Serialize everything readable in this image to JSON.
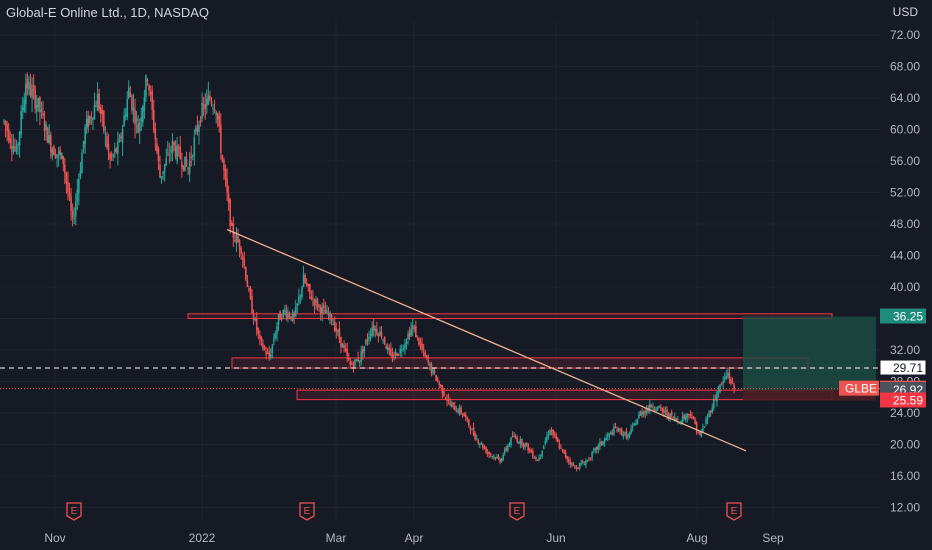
{
  "header": {
    "title": "Global-E Online Ltd., 1D, NASDAQ",
    "currency": "USD"
  },
  "colors": {
    "background": "#161a25",
    "up": "#26a69a",
    "down": "#ef5350",
    "trendline": "#f0b28e",
    "zone_border": "#f23645",
    "target_zone": "#1b4d44",
    "stop_zone": "#4a1f26"
  },
  "chart_data": {
    "type": "candlestick",
    "title": "Global-E Online Ltd., 1D, NASDAQ",
    "ylabel": "USD",
    "ylim": [
      8,
      76
    ],
    "y_ticks": [
      "72.00",
      "68.00",
      "64.00",
      "60.00",
      "56.00",
      "52.00",
      "48.00",
      "44.00",
      "40.00",
      "36.00",
      "32.00",
      "28.00",
      "24.00",
      "20.00",
      "16.00",
      "12.00"
    ],
    "x_ticks": [
      "Nov",
      "2022",
      "Mar",
      "Apr",
      "Jun",
      "Aug",
      "Sep"
    ],
    "price_path": [
      [
        0,
        61
      ],
      [
        8,
        57
      ],
      [
        14,
        66
      ],
      [
        22,
        63
      ],
      [
        30,
        58
      ],
      [
        38,
        56
      ],
      [
        44,
        48
      ],
      [
        52,
        60
      ],
      [
        60,
        64
      ],
      [
        68,
        56
      ],
      [
        74,
        58
      ],
      [
        80,
        65
      ],
      [
        86,
        60
      ],
      [
        92,
        67
      ],
      [
        100,
        54
      ],
      [
        108,
        58
      ],
      [
        118,
        55
      ],
      [
        126,
        62
      ],
      [
        132,
        64
      ],
      [
        136,
        63
      ],
      [
        140,
        56
      ],
      [
        146,
        47
      ],
      [
        152,
        45
      ],
      [
        158,
        38
      ],
      [
        164,
        33
      ],
      [
        170,
        31
      ],
      [
        176,
        36
      ],
      [
        180,
        37
      ],
      [
        186,
        36
      ],
      [
        192,
        41
      ],
      [
        196,
        39
      ],
      [
        204,
        37
      ],
      [
        210,
        36
      ],
      [
        216,
        33
      ],
      [
        222,
        30
      ],
      [
        228,
        31
      ],
      [
        236,
        35
      ],
      [
        242,
        34
      ],
      [
        248,
        31
      ],
      [
        254,
        32
      ],
      [
        262,
        35
      ],
      [
        270,
        31
      ],
      [
        278,
        28
      ],
      [
        286,
        25
      ],
      [
        294,
        24
      ],
      [
        302,
        21
      ],
      [
        310,
        19
      ],
      [
        318,
        18
      ],
      [
        326,
        21
      ],
      [
        334,
        20
      ],
      [
        342,
        18
      ],
      [
        350,
        22
      ],
      [
        358,
        19
      ],
      [
        366,
        17
      ],
      [
        374,
        18
      ],
      [
        382,
        20
      ],
      [
        392,
        22
      ],
      [
        400,
        21
      ],
      [
        408,
        24
      ],
      [
        416,
        25
      ],
      [
        424,
        24
      ],
      [
        432,
        23
      ],
      [
        440,
        24
      ],
      [
        446,
        21
      ],
      [
        452,
        24
      ],
      [
        458,
        27
      ],
      [
        464,
        29
      ],
      [
        468,
        27
      ]
    ],
    "horizontal_levels": [
      {
        "value": 29.71,
        "label": "29.71",
        "style": "dashed"
      },
      {
        "value": 27.09,
        "label": "27.09",
        "style": "dotted"
      }
    ],
    "trendline": {
      "from": [
        "Jan",
        47.3
      ],
      "to": [
        "Sep",
        19.2
      ]
    },
    "zones": [
      {
        "name": "upper-resistance-zone",
        "low": 36.0,
        "high": 36.6
      },
      {
        "name": "middle-zone",
        "low": 29.7,
        "high": 31.0
      },
      {
        "name": "lower-support-zone",
        "low": 25.7,
        "high": 26.9
      }
    ],
    "position": {
      "target": 36.25,
      "entry": 26.92,
      "stop": 25.59
    },
    "price_labels": [
      {
        "text": "36.25",
        "value": 36.25,
        "kind": "target"
      },
      {
        "text": "29.71",
        "value": 29.71,
        "kind": "line"
      },
      {
        "text": "27.09",
        "value": 27.09,
        "kind": "last"
      },
      {
        "text": "26.92",
        "value": 26.92,
        "kind": "entry"
      },
      {
        "text": "25.59",
        "value": 25.59,
        "kind": "stop"
      }
    ],
    "ticker_label": "GLBE",
    "event_markers": [
      "E",
      "E",
      "E",
      "E"
    ]
  }
}
